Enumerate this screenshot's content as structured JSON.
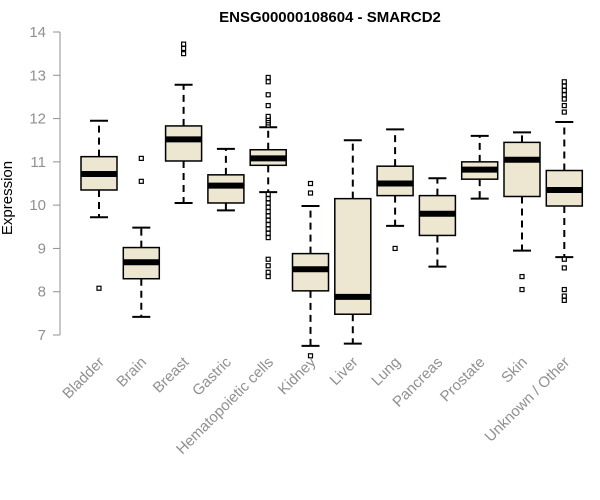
{
  "chart_data": {
    "type": "boxplot",
    "title": "ENSG00000108604 - SMARCD2",
    "xlabel": "",
    "ylabel": "Expression",
    "ylim": [
      6.7,
      14.1
    ],
    "yticks": [
      7,
      8,
      9,
      10,
      11,
      12,
      13,
      14
    ],
    "colors": {
      "box_fill": "#EDE7D1",
      "line": "#000000",
      "axis_text": "#909090",
      "axis_line": "#909090"
    },
    "categories": [
      "Bladder",
      "Brain",
      "Breast",
      "Gastric",
      "Hematopoietic cells",
      "Kidney",
      "Liver",
      "Lung",
      "Pancreas",
      "Prostate",
      "Skin",
      "Unknown / Other"
    ],
    "boxes": [
      {
        "name": "Bladder",
        "whisker_low": 9.72,
        "q1": 10.35,
        "median": 10.72,
        "q3": 11.12,
        "whisker_high": 11.95,
        "outliers": [
          8.08
        ]
      },
      {
        "name": "Brain",
        "whisker_low": 7.42,
        "q1": 8.3,
        "median": 8.68,
        "q3": 9.02,
        "whisker_high": 9.48,
        "outliers": [
          10.55,
          11.08
        ]
      },
      {
        "name": "Breast",
        "whisker_low": 10.05,
        "q1": 11.02,
        "median": 11.52,
        "q3": 11.83,
        "whisker_high": 12.78,
        "outliers": [
          13.5,
          13.62,
          13.72
        ]
      },
      {
        "name": "Gastric",
        "whisker_low": 9.88,
        "q1": 10.05,
        "median": 10.45,
        "q3": 10.7,
        "whisker_high": 11.3,
        "outliers": []
      },
      {
        "name": "Hematopoietic cells",
        "whisker_low": 10.3,
        "q1": 10.92,
        "median": 11.08,
        "q3": 11.28,
        "whisker_high": 11.8,
        "outliers": [
          8.35,
          8.45,
          8.6,
          8.75,
          9.25,
          9.35,
          9.45,
          9.55,
          9.65,
          9.75,
          9.85,
          9.95,
          10.05,
          10.15,
          10.25,
          11.85,
          11.9,
          11.95,
          12.0,
          12.05,
          12.3,
          12.55,
          12.85,
          12.95
        ]
      },
      {
        "name": "Kidney",
        "whisker_low": 6.75,
        "q1": 8.02,
        "median": 8.52,
        "q3": 8.88,
        "whisker_high": 9.98,
        "outliers": [
          6.52,
          10.28,
          10.5
        ]
      },
      {
        "name": "Liver",
        "whisker_low": 6.8,
        "q1": 7.48,
        "median": 7.88,
        "q3": 10.15,
        "whisker_high": 11.5,
        "outliers": []
      },
      {
        "name": "Lung",
        "whisker_low": 9.52,
        "q1": 10.22,
        "median": 10.5,
        "q3": 10.9,
        "whisker_high": 11.75,
        "outliers": [
          9.0
        ]
      },
      {
        "name": "Pancreas",
        "whisker_low": 8.58,
        "q1": 9.3,
        "median": 9.8,
        "q3": 10.22,
        "whisker_high": 10.62,
        "outliers": []
      },
      {
        "name": "Prostate",
        "whisker_low": 10.15,
        "q1": 10.6,
        "median": 10.82,
        "q3": 11.0,
        "whisker_high": 11.6,
        "outliers": []
      },
      {
        "name": "Skin",
        "whisker_low": 8.95,
        "q1": 10.2,
        "median": 11.05,
        "q3": 11.45,
        "whisker_high": 11.68,
        "outliers": [
          8.05,
          8.35
        ]
      },
      {
        "name": "Unknown / Other",
        "whisker_low": 8.8,
        "q1": 9.98,
        "median": 10.35,
        "q3": 10.8,
        "whisker_high": 11.92,
        "outliers": [
          7.8,
          7.9,
          8.05,
          8.55,
          8.75,
          12.15,
          12.3,
          12.45,
          12.55,
          12.65,
          12.75,
          12.85
        ]
      }
    ]
  }
}
